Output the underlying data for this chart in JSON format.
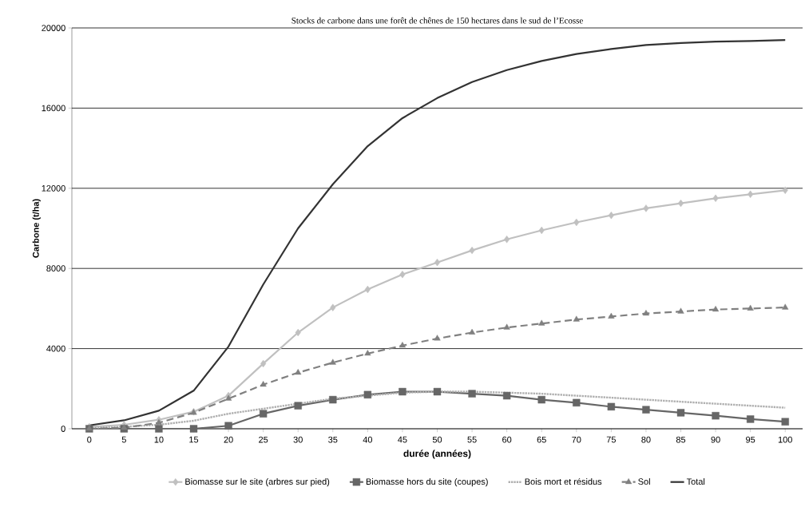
{
  "chart_data": {
    "type": "line",
    "title": "Stocks de carbone dans une forêt de chênes de 150 hectares dans le sud de l’Ecosse",
    "xlabel": "durée (années)",
    "ylabel": "Carbone (t/ha)",
    "categories": [
      "0",
      "5",
      "10",
      "15",
      "20",
      "25",
      "30",
      "35",
      "40",
      "45",
      "50",
      "55",
      "60",
      "65",
      "70",
      "75",
      "80",
      "85",
      "90",
      "95",
      "100"
    ],
    "ylim": [
      0,
      20000
    ],
    "yticks": [
      0,
      4000,
      8000,
      12000,
      16000,
      20000
    ],
    "grid": "y",
    "legend": "bottom",
    "series": [
      {
        "name": "Biomasse sur le site (arbres sur pied)",
        "color": "#c0c0c0",
        "marker": "diamond",
        "line_style": "solid",
        "values": [
          100,
          200,
          450,
          850,
          1650,
          3250,
          4800,
          6050,
          6950,
          7700,
          8300,
          8900,
          9450,
          9900,
          10300,
          10650,
          11000,
          11250,
          11500,
          11700,
          11900
        ]
      },
      {
        "name": "Biomasse hors du site (coupes)",
        "color": "#666666",
        "marker": "square",
        "line_style": "solid",
        "values": [
          0,
          0,
          0,
          0,
          150,
          750,
          1150,
          1450,
          1700,
          1850,
          1850,
          1750,
          1650,
          1450,
          1300,
          1100,
          950,
          800,
          650,
          480,
          350
        ]
      },
      {
        "name": "Bois mort et résidus",
        "color": "#b0b0b0",
        "marker": "none",
        "line_style": "dotted",
        "values": [
          50,
          100,
          200,
          400,
          750,
          1000,
          1250,
          1500,
          1650,
          1800,
          1850,
          1850,
          1800,
          1750,
          1650,
          1550,
          1450,
          1350,
          1250,
          1150,
          1050
        ]
      },
      {
        "name": "Sol",
        "color": "#808080",
        "marker": "triangle",
        "line_style": "dashed",
        "values": [
          0,
          50,
          300,
          800,
          1500,
          2200,
          2800,
          3300,
          3750,
          4150,
          4500,
          4800,
          5050,
          5250,
          5450,
          5600,
          5750,
          5850,
          5950,
          6000,
          6050
        ]
      },
      {
        "name": "Total",
        "color": "#333333",
        "marker": "none",
        "line_style": "solid",
        "values": [
          170,
          420,
          900,
          1900,
          4100,
          7200,
          10000,
          12200,
          14100,
          15500,
          16500,
          17300,
          17900,
          18350,
          18700,
          18950,
          19150,
          19250,
          19320,
          19350,
          19400
        ]
      }
    ]
  }
}
